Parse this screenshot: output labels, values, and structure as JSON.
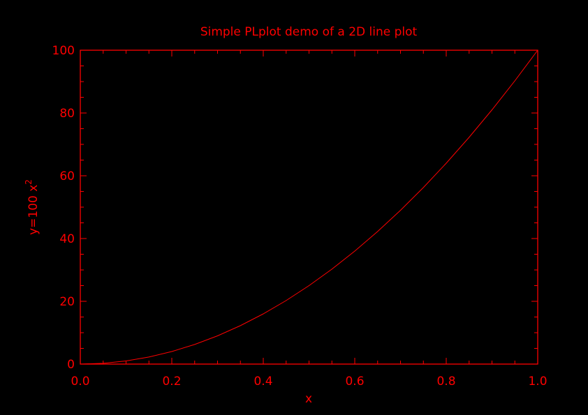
{
  "colors": {
    "background": "#000000",
    "foreground": "#ff0000"
  },
  "chart_data": {
    "type": "line",
    "title": "Simple PLplot demo of a 2D line plot",
    "xlabel": "x",
    "ylabel": {
      "base": "y=100 x",
      "superscript": "2"
    },
    "xlim": [
      0.0,
      1.0
    ],
    "ylim": [
      0,
      100
    ],
    "x_ticks": [
      {
        "value": 0.0,
        "label": "0.0"
      },
      {
        "value": 0.2,
        "label": "0.2"
      },
      {
        "value": 0.4,
        "label": "0.4"
      },
      {
        "value": 0.6,
        "label": "0.6"
      },
      {
        "value": 0.8,
        "label": "0.8"
      },
      {
        "value": 1.0,
        "label": "1.0"
      }
    ],
    "y_ticks": [
      {
        "value": 0,
        "label": "0"
      },
      {
        "value": 20,
        "label": "20"
      },
      {
        "value": 40,
        "label": "40"
      },
      {
        "value": 60,
        "label": "60"
      },
      {
        "value": 80,
        "label": "80"
      },
      {
        "value": 100,
        "label": "100"
      }
    ],
    "x_minor_step": 0.05,
    "y_minor_step": 5,
    "grid": false,
    "legend": "none",
    "series": [
      {
        "x": [
          0.0,
          0.05,
          0.1,
          0.15,
          0.2,
          0.25,
          0.3,
          0.35,
          0.4,
          0.45,
          0.5,
          0.55,
          0.6,
          0.65,
          0.7,
          0.75,
          0.8,
          0.85,
          0.9,
          0.95,
          1.0
        ],
        "y": [
          0,
          0.25,
          1,
          2.25,
          4,
          6.25,
          9,
          12.25,
          16,
          20.25,
          25,
          30.25,
          36,
          42.25,
          49,
          56.25,
          64,
          72.25,
          81,
          90.25,
          100
        ]
      }
    ]
  }
}
